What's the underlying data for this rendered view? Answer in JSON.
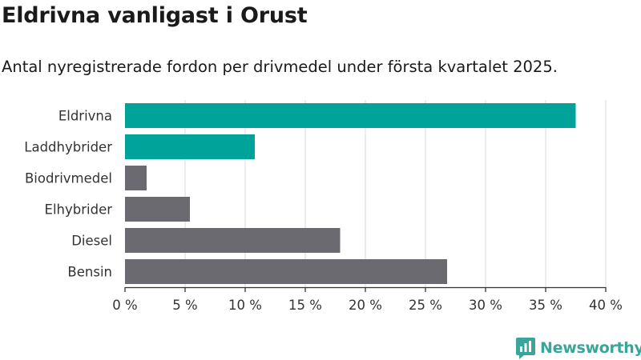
{
  "header": {
    "title": "Eldrivna vanligast i Orust",
    "subtitle": "Antal nyregistrerade fordon per drivmedel under första kvartalet 2025."
  },
  "brand": {
    "name": "Newsworthy",
    "icon": "newsworthy-logo-icon",
    "color": "#3aa59a"
  },
  "colors": {
    "highlight": "#00a39a",
    "default": "#6b6a70",
    "grid": "#d9d9d9",
    "axis": "#333333"
  },
  "chart_data": {
    "type": "bar",
    "orientation": "horizontal",
    "categories": [
      "Eldrivna",
      "Laddhybrider",
      "Biodrivmedel",
      "Elhybrider",
      "Diesel",
      "Bensin"
    ],
    "values": [
      37.5,
      10.8,
      1.8,
      5.4,
      17.9,
      26.8
    ],
    "highlighted": [
      true,
      true,
      false,
      false,
      false,
      false
    ],
    "xlim": [
      0,
      40
    ],
    "xticks": [
      0,
      5,
      10,
      15,
      20,
      25,
      30,
      35,
      40
    ],
    "tick_labels": [
      "0 %",
      "5 %",
      "10 %",
      "15 %",
      "20 %",
      "25 %",
      "30 %",
      "35 %",
      "40 %"
    ],
    "grid": true,
    "xlabel": "",
    "ylabel": ""
  }
}
